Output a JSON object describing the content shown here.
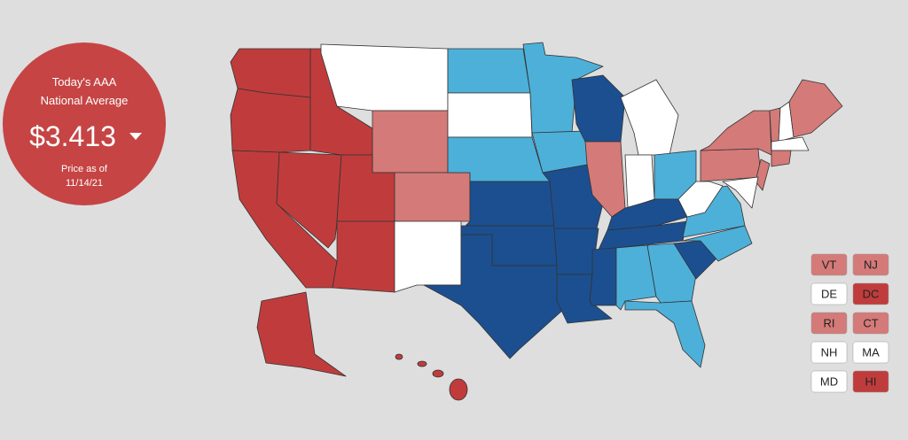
{
  "badge": {
    "line1": "Today's AAA",
    "line2": "National Average",
    "price": "$3.413",
    "price_note": "Price as of",
    "date": "11/14/21",
    "color": "#c64444"
  },
  "state_boxes": [
    {
      "label": "VT",
      "color": "#d47a78"
    },
    {
      "label": "NJ",
      "color": "#d47a78"
    },
    {
      "label": "DE",
      "color": "#ffffff"
    },
    {
      "label": "DC",
      "color": "#c03c3c"
    },
    {
      "label": "RI",
      "color": "#d47a78"
    },
    {
      "label": "CT",
      "color": "#d47a78"
    },
    {
      "label": "NH",
      "color": "#ffffff"
    },
    {
      "label": "MA",
      "color": "#ffffff"
    },
    {
      "label": "MD",
      "color": "#ffffff"
    },
    {
      "label": "HI",
      "color": "#c03c3c"
    }
  ]
}
